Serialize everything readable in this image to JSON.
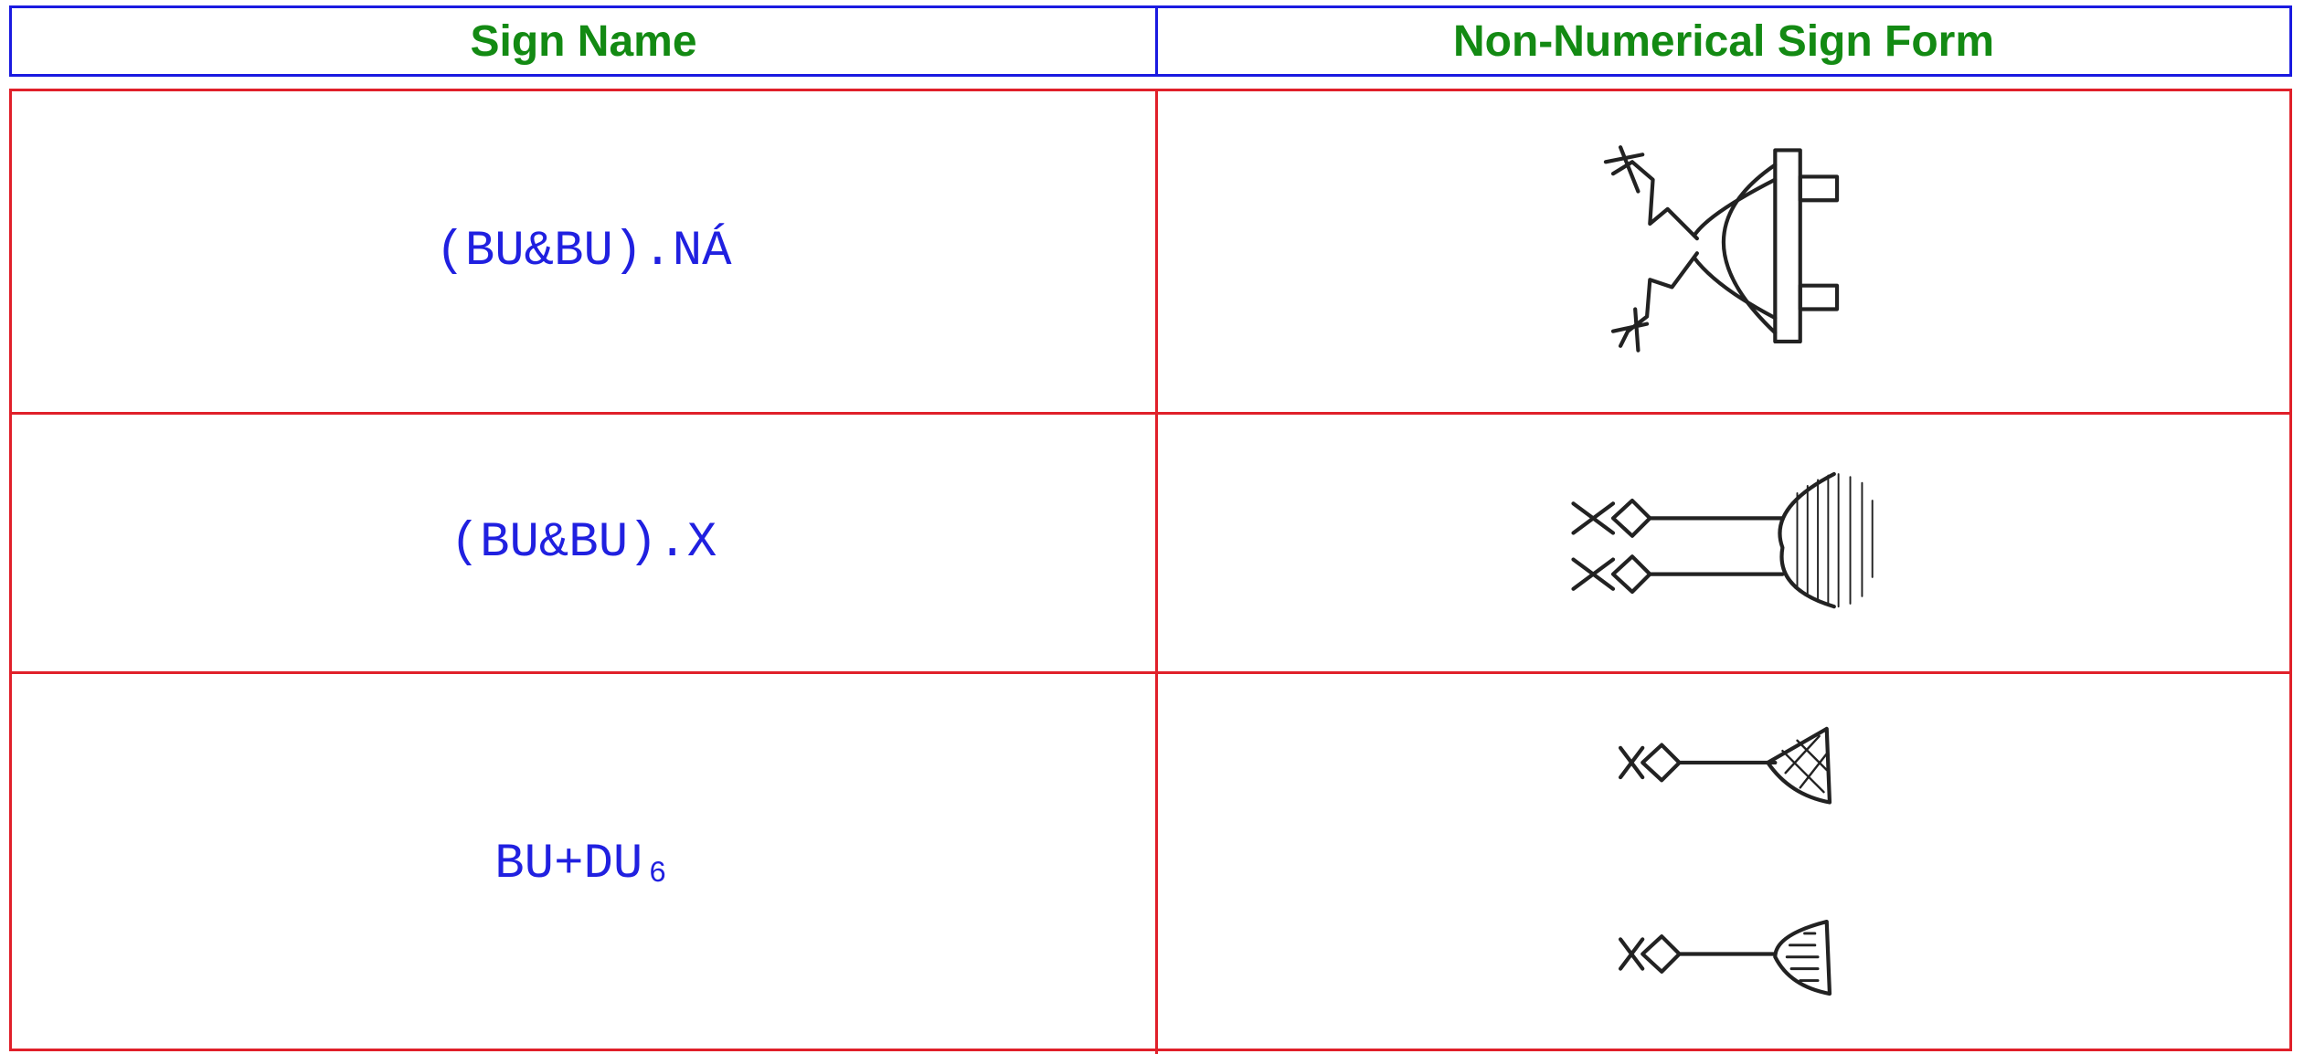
{
  "table": {
    "header": [
      "Sign Name",
      "Non-Numerical Sign Form"
    ],
    "rows": [
      [
        "(BU&BU).NÁ"
      ],
      [
        "(BU&BU).X"
      ],
      [
        "BU+DU₆"
      ]
    ]
  }
}
